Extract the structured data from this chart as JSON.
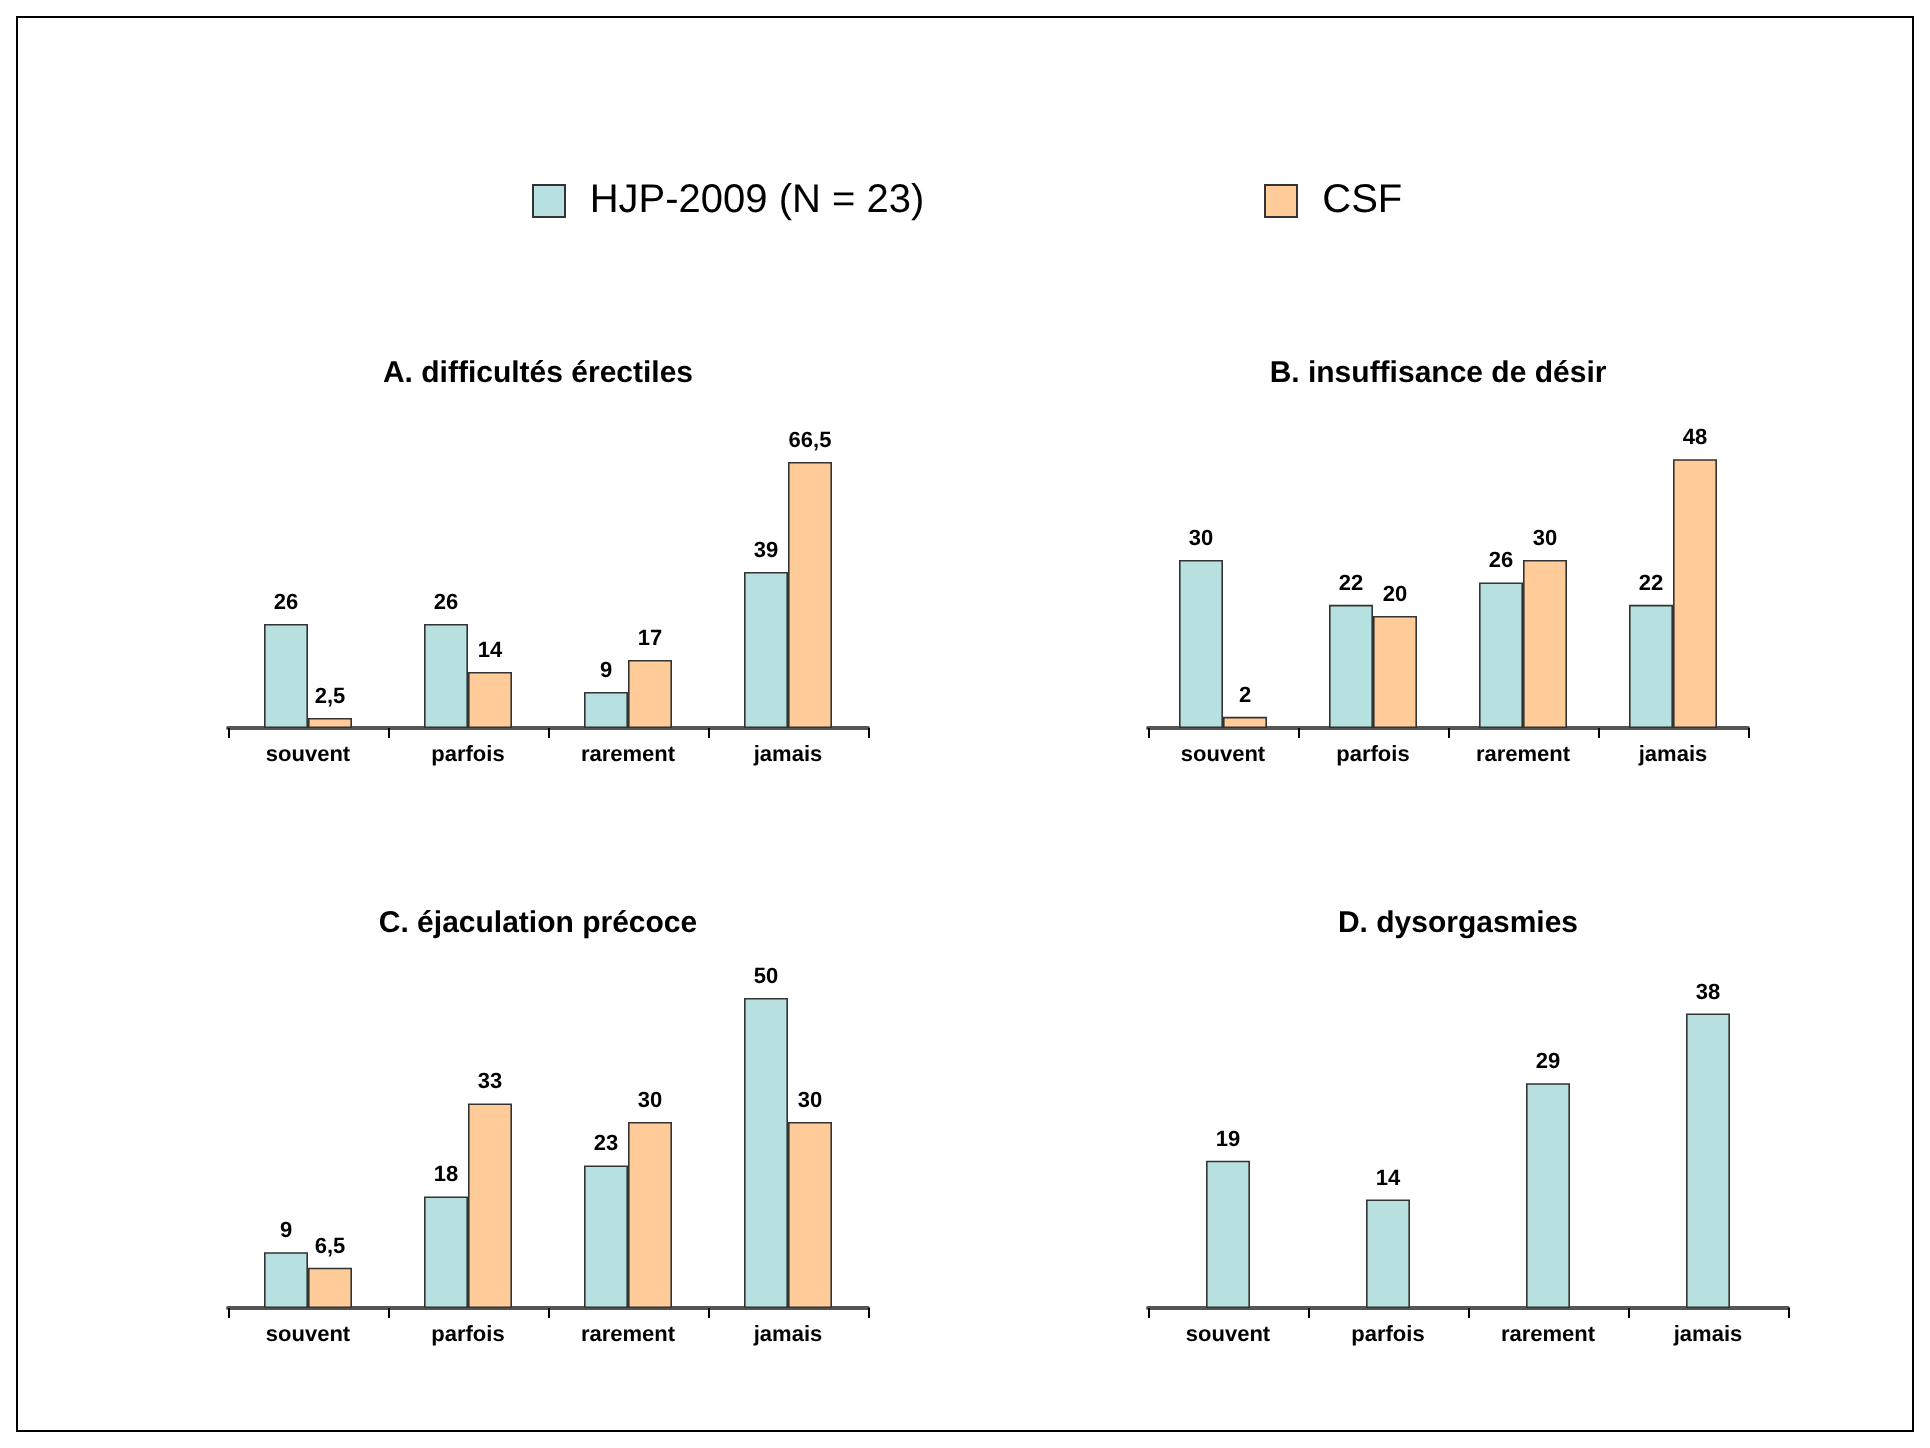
{
  "chart_data": [
    {
      "type": "bar",
      "title": "A. difficultés érectiles",
      "categories": [
        "souvent",
        "parfois",
        "rarement",
        "jamais"
      ],
      "series": [
        {
          "name": "HJP-2009 (N = 23)",
          "color": "#b7e0e0",
          "values": [
            26,
            26,
            9,
            39
          ]
        },
        {
          "name": "CSF",
          "color": "#ffcc99",
          "values": [
            2.5,
            14,
            17,
            66.5
          ],
          "value_labels": [
            "2,5",
            "14",
            "17",
            "66,5"
          ]
        }
      ],
      "data_labels": true,
      "legend": "top",
      "tick_labels": "x",
      "grid": false
    },
    {
      "type": "bar",
      "title": "B. insuffisance de désir",
      "categories": [
        "souvent",
        "parfois",
        "rarement",
        "jamais"
      ],
      "series": [
        {
          "color": "#b7e0e0",
          "values": [
            30,
            22,
            26,
            22
          ]
        },
        {
          "color": "#ffcc99",
          "values": [
            2,
            20,
            30,
            48
          ]
        }
      ],
      "data_labels": true,
      "tick_labels": "x",
      "grid": false
    },
    {
      "type": "bar",
      "title": "C. éjaculation précoce",
      "categories": [
        "souvent",
        "parfois",
        "rarement",
        "jamais"
      ],
      "series": [
        {
          "color": "#b7e0e0",
          "values": [
            9,
            18,
            23,
            50
          ]
        },
        {
          "color": "#ffcc99",
          "values": [
            6.5,
            33,
            30,
            30
          ],
          "value_labels": [
            "6,5",
            "33",
            "30",
            "30"
          ]
        }
      ],
      "data_labels": true,
      "tick_labels": "x",
      "grid": false
    },
    {
      "type": "bar",
      "title": "D. dysorgasmies",
      "categories": [
        "souvent",
        "parfois",
        "rarement",
        "jamais"
      ],
      "series": [
        {
          "color": "#b7e0e0",
          "values": [
            19,
            14,
            29,
            38
          ]
        }
      ],
      "data_labels": true,
      "tick_labels": "x",
      "grid": false
    }
  ]
}
